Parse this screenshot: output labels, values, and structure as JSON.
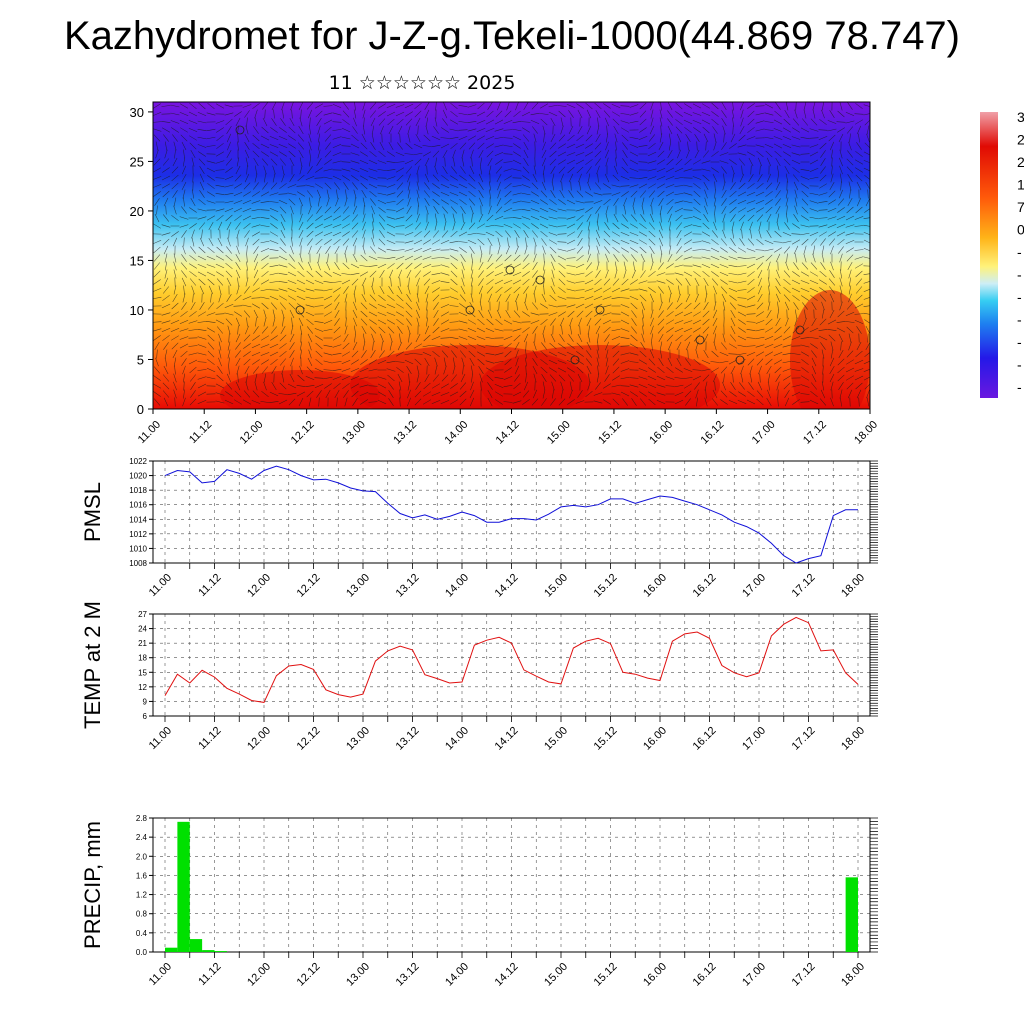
{
  "header": {
    "title": "Kazhydromet for J-Z-g.Tekeli-1000(44.869 78.747)",
    "subtitle": "11 ☆☆☆☆☆☆ 2025"
  },
  "time_ticks": [
    "11.00",
    "11.12",
    "12.00",
    "12.12",
    "13.00",
    "13.12",
    "14.00",
    "14.12",
    "15.00",
    "15.12",
    "16.00",
    "16.12",
    "17.00",
    "17.12",
    "18.00"
  ],
  "chart_data": [
    {
      "type": "heatmap",
      "title": "",
      "ylim": [
        0,
        31
      ],
      "yticks": [
        0,
        5,
        10,
        15,
        20,
        25,
        30
      ],
      "overlay": "wind-vectors",
      "colormap": [
        "#6a0dd8",
        "#2b1ee8",
        "#1e74f0",
        "#28c8f0",
        "#c8ecf4",
        "#fff276",
        "#ffcf2e",
        "#ff9a10",
        "#ff5a08",
        "#ec1004"
      ],
      "colorbar_labels": [
        "3",
        "2",
        "2",
        "1",
        "7",
        "0",
        "-",
        "-",
        "-",
        "-",
        "-",
        "-",
        "-"
      ]
    },
    {
      "type": "line",
      "ylabel": "PMSL",
      "ylim": [
        1008,
        1022
      ],
      "yticks": [
        1008,
        1010,
        1012,
        1014,
        1016,
        1018,
        1020,
        1022
      ],
      "color": "#1010d8",
      "x": [
        0,
        3,
        6,
        9,
        12,
        15,
        18,
        21,
        24,
        27,
        30,
        33,
        36,
        39,
        42,
        45,
        48,
        51,
        54,
        57,
        60,
        63,
        66,
        69,
        72,
        75,
        78,
        81,
        84,
        87,
        90,
        93,
        96,
        99,
        102,
        105,
        108,
        111,
        114,
        117,
        120,
        123,
        126,
        129,
        132,
        135,
        138,
        141,
        144,
        147,
        150,
        153,
        156,
        159,
        162,
        165,
        168
      ],
      "values": [
        1020.0,
        1020.7,
        1020.5,
        1019.0,
        1019.2,
        1020.8,
        1020.3,
        1019.5,
        1020.7,
        1021.3,
        1020.8,
        1020.0,
        1019.4,
        1019.5,
        1019.0,
        1018.3,
        1017.9,
        1017.8,
        1016.2,
        1014.8,
        1014.2,
        1014.6,
        1014.0,
        1014.4,
        1015.0,
        1014.5,
        1013.6,
        1013.6,
        1014.1,
        1014.1,
        1013.9,
        1014.7,
        1015.7,
        1015.9,
        1015.7,
        1016.0,
        1016.8,
        1016.8,
        1016.2,
        1016.7,
        1017.2,
        1017.0,
        1016.5,
        1016.0,
        1015.3,
        1014.6,
        1013.6,
        1013.0,
        1012.1,
        1010.7,
        1009.0,
        1008.0,
        1008.6,
        1009.0,
        1014.5,
        1015.3,
        1015.3
      ]
    },
    {
      "type": "line",
      "ylabel": "TEMP at 2 M",
      "ylim": [
        6,
        27
      ],
      "yticks": [
        6,
        9,
        12,
        15,
        18,
        21,
        24,
        27
      ],
      "color": "#e01010",
      "x": [
        0,
        3,
        6,
        9,
        12,
        15,
        18,
        21,
        24,
        27,
        30,
        33,
        36,
        39,
        42,
        45,
        48,
        51,
        54,
        57,
        60,
        63,
        66,
        69,
        72,
        75,
        78,
        81,
        84,
        87,
        90,
        93,
        96,
        99,
        102,
        105,
        108,
        111,
        114,
        117,
        120,
        123,
        126,
        129,
        132,
        135,
        138,
        141,
        144,
        147,
        150,
        153,
        156,
        159,
        162,
        165,
        168
      ],
      "values": [
        10.2,
        14.6,
        12.8,
        15.4,
        14.0,
        11.7,
        10.5,
        9.2,
        8.8,
        14.3,
        16.3,
        16.6,
        15.6,
        11.4,
        10.4,
        9.9,
        10.5,
        17.3,
        19.4,
        20.4,
        19.6,
        14.5,
        13.7,
        12.8,
        13.0,
        20.6,
        21.6,
        22.2,
        21.0,
        15.5,
        14.2,
        13.0,
        12.6,
        20.0,
        21.4,
        22.0,
        20.9,
        15.0,
        14.6,
        13.8,
        13.3,
        21.4,
        22.9,
        23.3,
        22.0,
        16.4,
        14.9,
        14.1,
        14.9,
        22.5,
        24.9,
        26.3,
        25.2,
        19.4,
        19.6,
        14.9,
        12.5
      ]
    },
    {
      "type": "bar",
      "ylabel": "PRECIP, mm",
      "ylim": [
        0,
        2.8
      ],
      "yticks": [
        "0.0",
        "0.4",
        "0.8",
        "1.2",
        "1.6",
        "2.0",
        "2.4",
        "2.8"
      ],
      "color": "#00e000",
      "x": [
        0,
        3,
        6,
        9,
        12,
        165
      ],
      "values": [
        0.09,
        2.72,
        0.27,
        0.04,
        0.02,
        1.56
      ]
    }
  ]
}
